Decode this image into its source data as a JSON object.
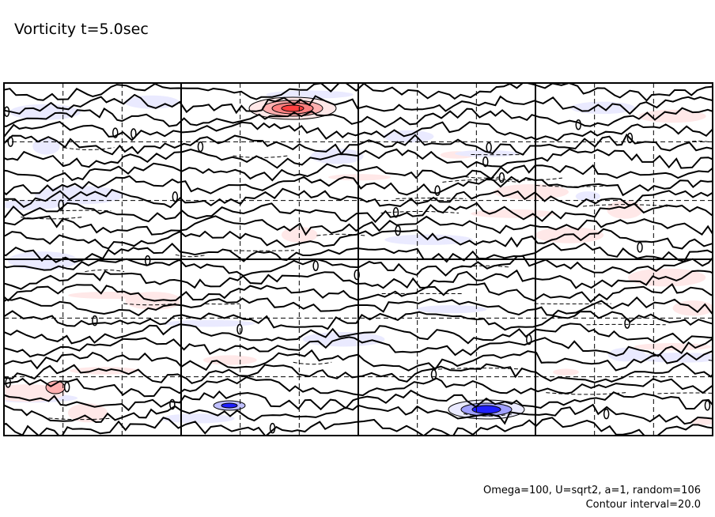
{
  "chart_data": {
    "type": "contour",
    "title": "Vorticity t=5.0sec",
    "annotations": [
      "Omega=100, U=sqrt2, a=1, random=106",
      "Contour interval=20.0"
    ],
    "contour_interval": 20.0,
    "grid": true,
    "grid_major_divisions": {
      "x": 4,
      "y": 2
    },
    "grid_minor_divisions": {
      "x": 12,
      "y": 6
    },
    "axis_ticks_labeled": false,
    "colors": {
      "positive": "#ff4040",
      "positive_light": "#ffe8e8",
      "negative": "#2020ff",
      "negative_light": "#eaeaff",
      "zero_contour": "#000000"
    },
    "features": [
      {
        "kind": "positive maximum",
        "location": "upper middle-left",
        "color": "red"
      },
      {
        "kind": "negative minimum",
        "location": "lower middle-right",
        "color": "blue"
      },
      {
        "kind": "negative minimum",
        "location": "lower middle-left",
        "color": "blue"
      }
    ]
  }
}
